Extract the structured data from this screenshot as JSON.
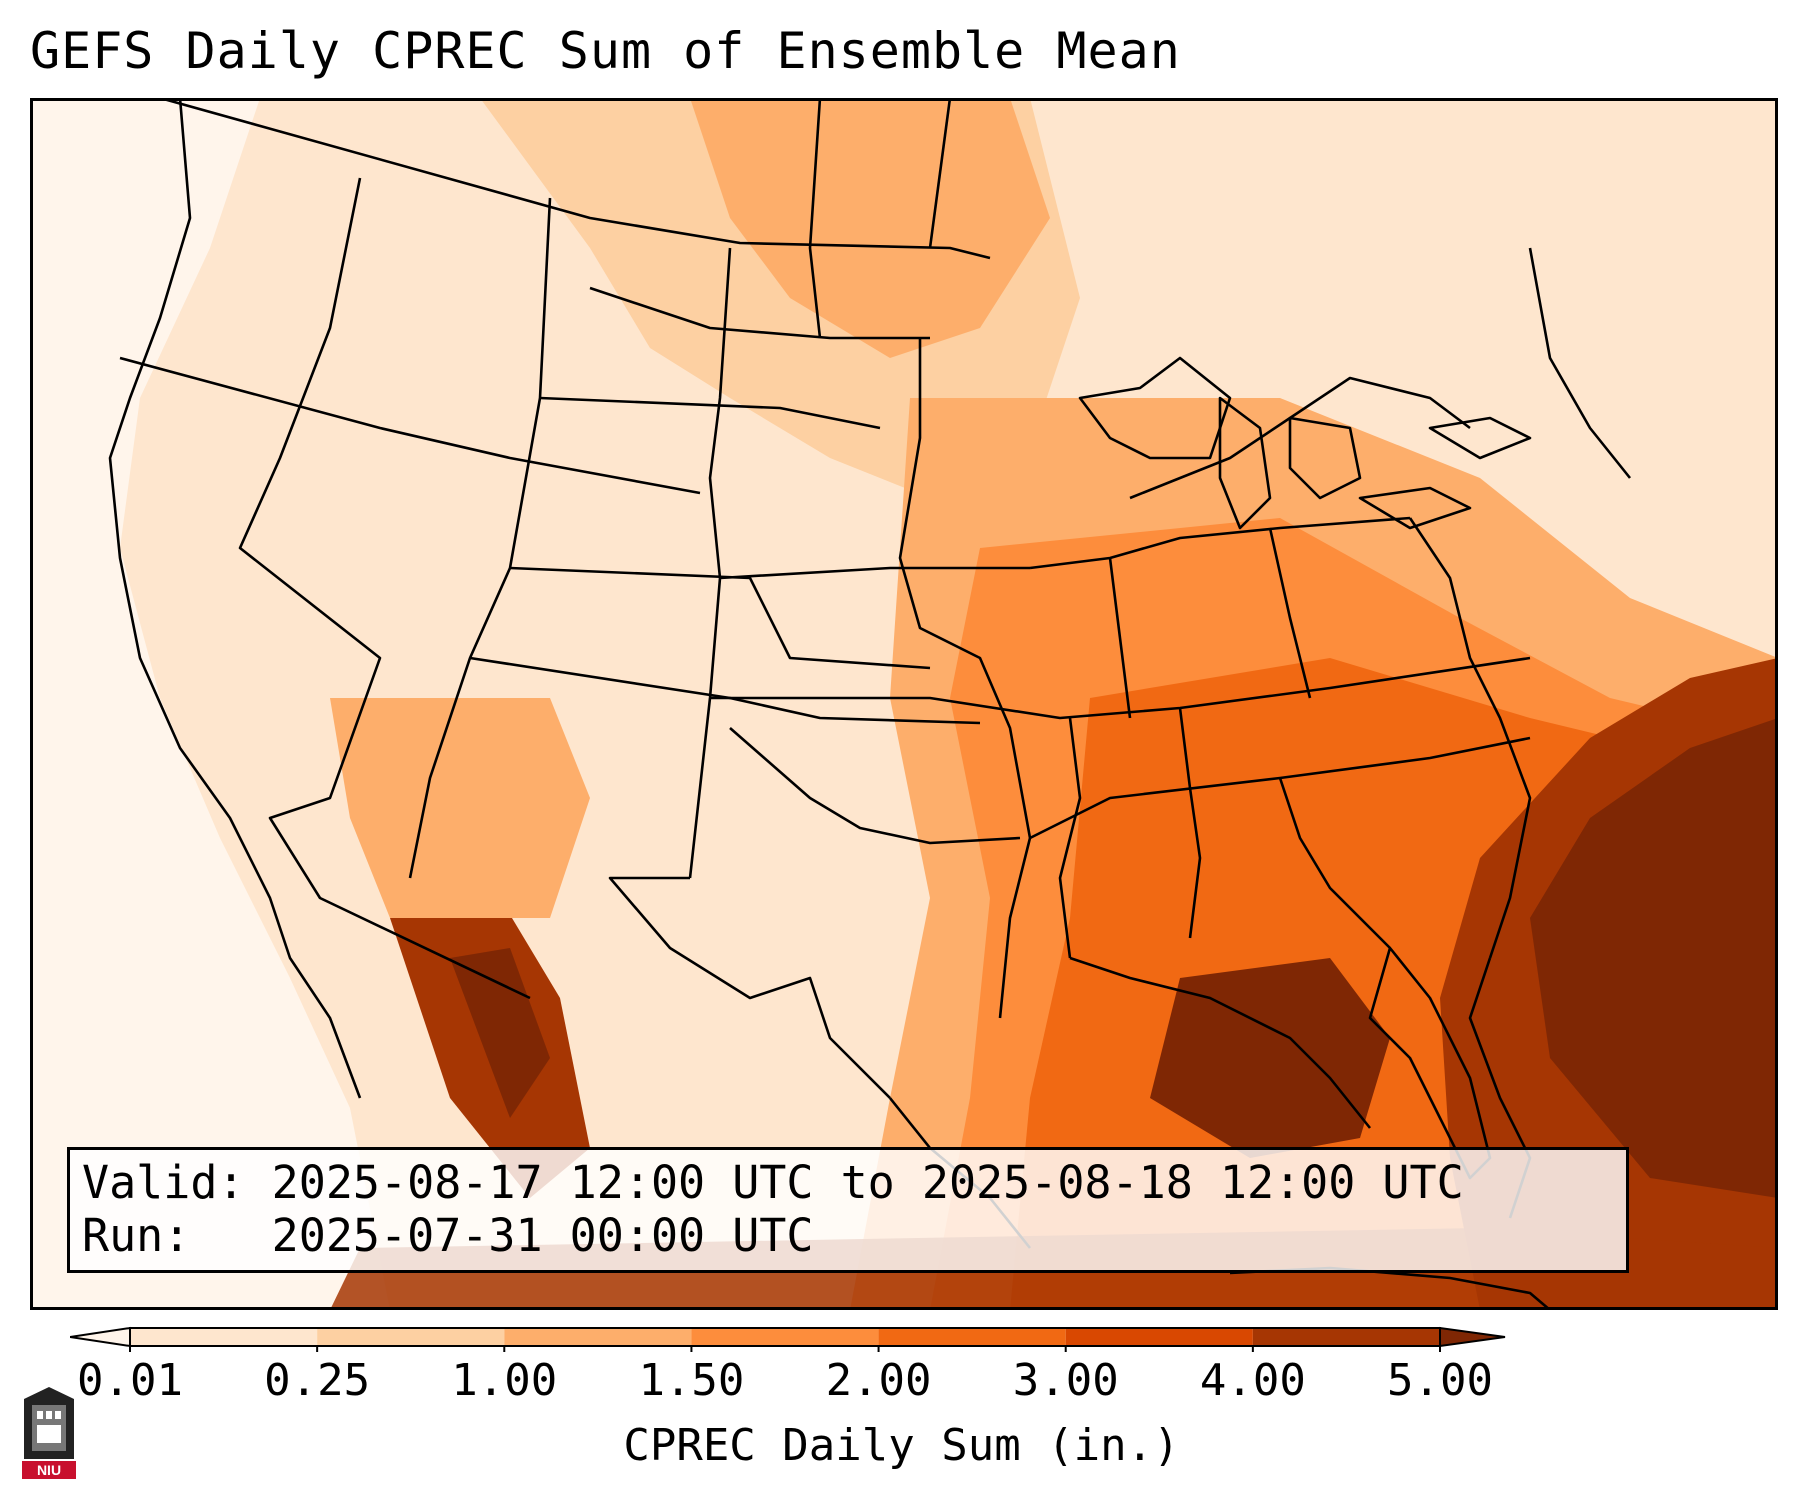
{
  "title": "GEFS Daily CPREC Sum of Ensemble Mean",
  "info": {
    "valid_line": "Valid: 2025-08-17 12:00 UTC to 2025-08-18 12:00 UTC",
    "run_line": "Run:   2025-07-31 00:00 UTC"
  },
  "colorbar": {
    "label": "CPREC Daily Sum (in.)",
    "ticks": [
      "0.01",
      "0.25",
      "1.00",
      "1.50",
      "2.00",
      "3.00",
      "4.00",
      "5.00"
    ],
    "colors": [
      "#fff5eb",
      "#fee6ce",
      "#fdd0a2",
      "#fdae6b",
      "#fd8d3c",
      "#f16913",
      "#d94801",
      "#a63603",
      "#7f2704"
    ],
    "extend": "both"
  },
  "logo": {
    "text": "NIU"
  },
  "colors": {
    "ocean_light": "#fff5eb",
    "heavy": "#8c2d04",
    "border": "#000000"
  }
}
